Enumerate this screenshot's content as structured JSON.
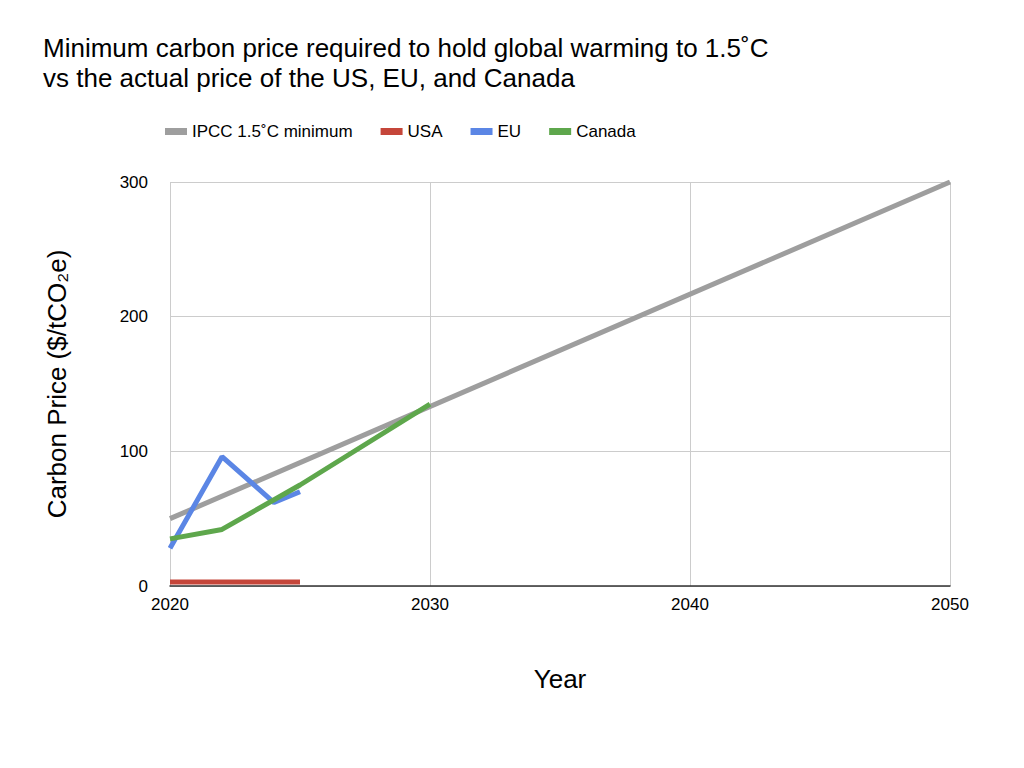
{
  "chart_data": {
    "type": "line",
    "title": "Minimum carbon price required to hold global warming to 1.5˚C\nvs the actual price of the US, EU, and Canada",
    "x_label": "Year",
    "y_label": "Carbon Price ($/tCO₂e)",
    "xlim": [
      2020,
      2050
    ],
    "xticks": [
      2020,
      2030,
      2040,
      2050
    ],
    "ylim": [
      0,
      300
    ],
    "yticks": [
      0,
      100,
      200,
      300
    ],
    "grid": true,
    "legend": "top",
    "series": [
      {
        "name": "IPCC 1.5˚C minimum",
        "color": "#9e9e9e",
        "x": [
          2020,
          2050
        ],
        "values": [
          50,
          300
        ]
      },
      {
        "name": "USA",
        "color": "#c5463a",
        "x": [
          2020,
          2025
        ],
        "values": [
          3,
          3
        ]
      },
      {
        "name": "EU",
        "color": "#5b86e5",
        "x": [
          2020,
          2022,
          2024,
          2025
        ],
        "values": [
          28,
          96,
          62,
          70
        ]
      },
      {
        "name": "Canada",
        "color": "#5ea74c",
        "x": [
          2020,
          2022,
          2025,
          2030
        ],
        "values": [
          35,
          42,
          75,
          135
        ]
      }
    ]
  }
}
